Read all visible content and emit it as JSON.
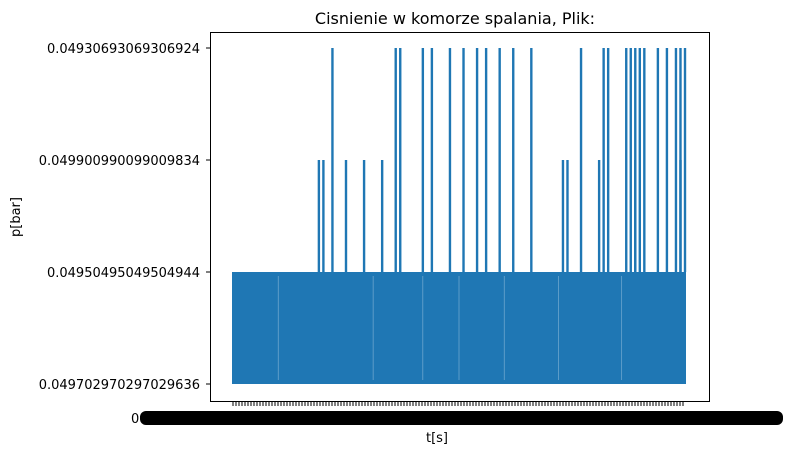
{
  "chart_data": {
    "type": "line",
    "title": "Cisnienie w komorze spalania, Plik:",
    "xlabel": "t[s]",
    "ylabel": "p[bar]",
    "grid": false,
    "legend": "none",
    "color": "#1f77b4",
    "y_is_categorical": true,
    "y_categories": [
      "0.049702970297029636",
      "0.04950495049504944",
      "0.049900990099009834",
      "0.04930693069306924"
    ],
    "x_tick_labels_overlapping_start": "0",
    "spike_to_top_positions": [
      0.22,
      0.36,
      0.37,
      0.42,
      0.44,
      0.48,
      0.51,
      0.54,
      0.56,
      0.59,
      0.62,
      0.66,
      0.77,
      0.82,
      0.83,
      0.87,
      0.88,
      0.89,
      0.9,
      0.91,
      0.94,
      0.96,
      0.98,
      0.99,
      1.0
    ],
    "spike_to_third_positions": [
      0.19,
      0.2,
      0.25,
      0.29,
      0.33,
      0.73,
      0.74,
      0.81,
      0.89,
      0.99
    ]
  }
}
